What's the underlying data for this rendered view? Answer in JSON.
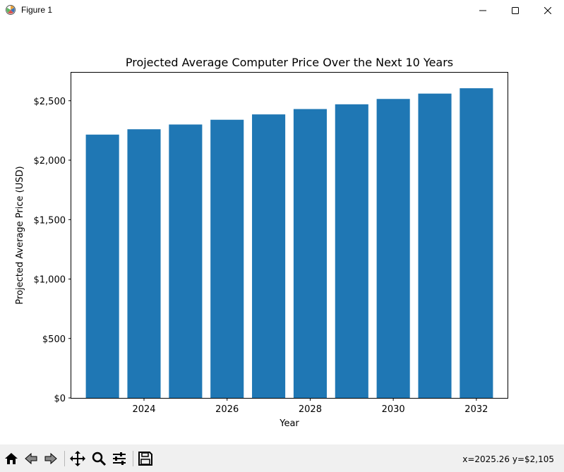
{
  "window": {
    "title": "Figure 1",
    "icon": "matplotlib-icon",
    "controls": [
      "minimize-icon",
      "maximize-icon",
      "close-icon"
    ]
  },
  "toolbar": {
    "buttons": [
      "home-icon",
      "back-icon",
      "forward-icon",
      "pan-icon",
      "zoom-icon",
      "configure-subplots-icon",
      "save-icon"
    ],
    "coordinates": "x=2025.26 y=$2,105"
  },
  "chart_data": {
    "type": "bar",
    "title": "Projected Average Computer Price Over the Next 10 Years",
    "xlabel": "Year",
    "ylabel": "Projected Average Price (USD)",
    "x": [
      2023,
      2024,
      2025,
      2026,
      2027,
      2028,
      2029,
      2030,
      2031,
      2032
    ],
    "values": [
      2215,
      2260,
      2300,
      2340,
      2385,
      2430,
      2470,
      2515,
      2560,
      2605
    ],
    "xlim": [
      2022.25,
      2032.75
    ],
    "ylim": [
      0,
      2736
    ],
    "xticks": [
      2024,
      2026,
      2028,
      2030,
      2032
    ],
    "xtick_labels": [
      "2024",
      "2026",
      "2028",
      "2030",
      "2032"
    ],
    "yticks": [
      0,
      500,
      1000,
      1500,
      2000,
      2500
    ],
    "ytick_labels": [
      "$0",
      "$500",
      "$1,000",
      "$1,500",
      "$2,000",
      "$2,500"
    ],
    "bar_color": "#1f77b4",
    "grid": false,
    "legend": "none"
  }
}
